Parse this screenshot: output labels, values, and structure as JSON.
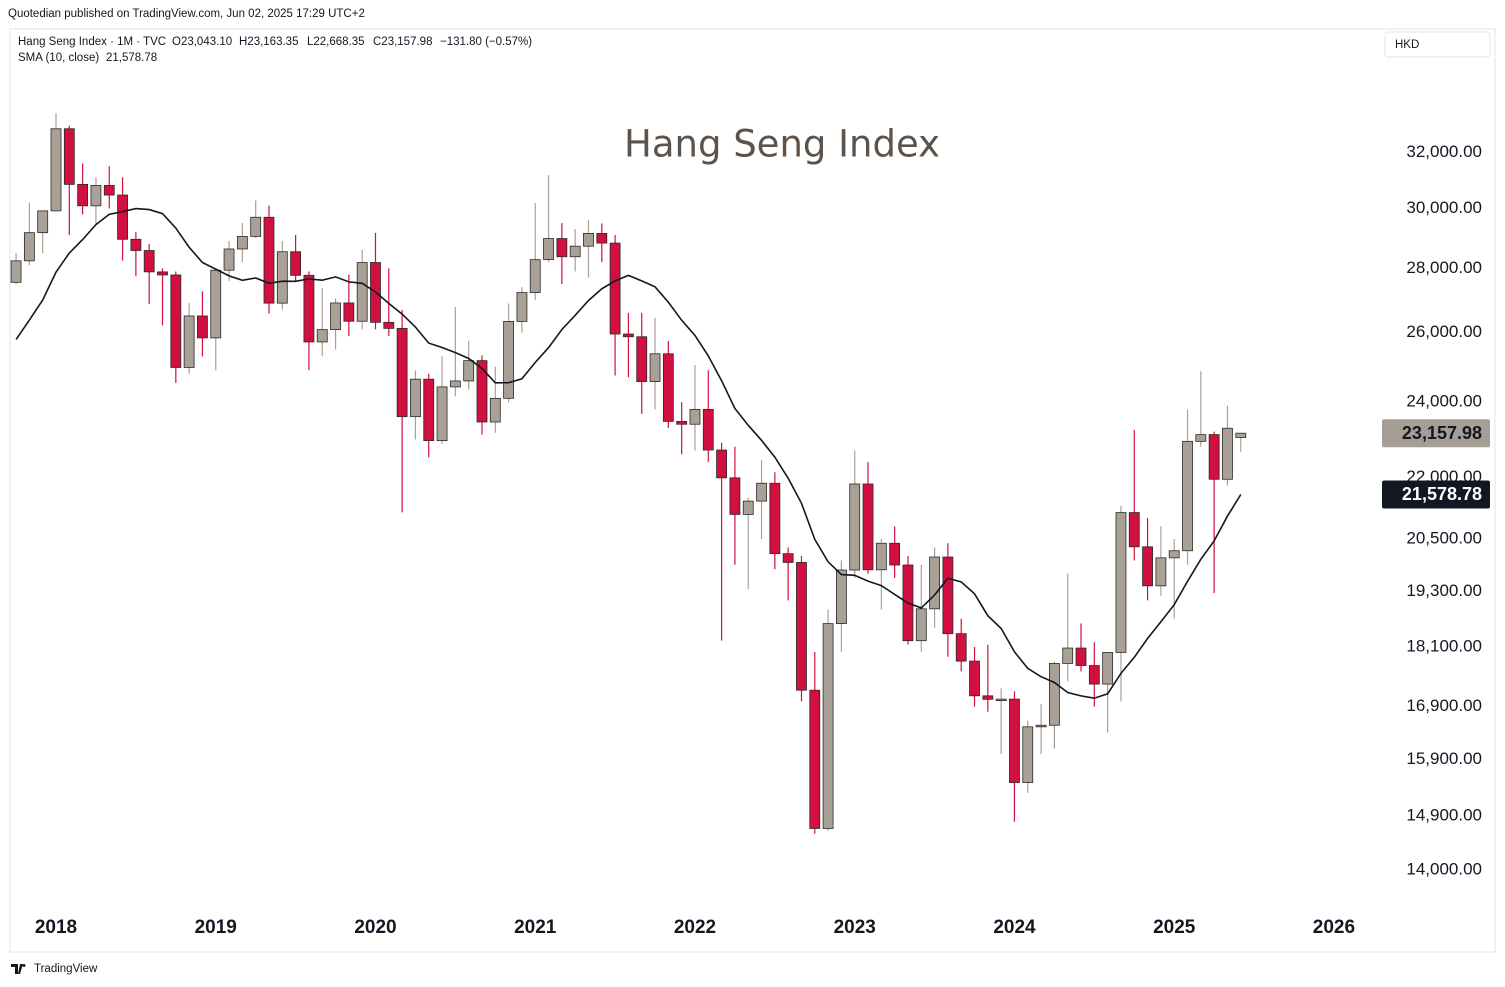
{
  "publisher": "Quotedian published on TradingView.com, Jun 02, 2025 17:29 UTC+2",
  "currency": "HKD",
  "footer": "TradingView",
  "header": {
    "symbol": "Hang Seng Index · 1M · TVC",
    "open": "O23,043.10",
    "high": "H23,163.35",
    "low": "L22,668.35",
    "close": "C23,157.98",
    "change": "−131.80 (−0.57%)"
  },
  "chart_data": {
    "type": "candlestick",
    "title": "Hang Seng Index",
    "log_scale": true,
    "grid": false,
    "up_color": "#a9a196",
    "down_color": "#d1103f",
    "xlim": [
      2017.712,
      2026.257
    ],
    "xticks": [
      2018,
      2019,
      2020,
      2021,
      2022,
      2023,
      2024,
      2025,
      2026
    ],
    "ylim": [
      13370,
      36850
    ],
    "yticks": [
      {
        "value": 14000,
        "label": "14,000.00"
      },
      {
        "value": 14900,
        "label": "14,900.00"
      },
      {
        "value": 15900,
        "label": "15,900.00"
      },
      {
        "value": 16900,
        "label": "16,900.00"
      },
      {
        "value": 18100,
        "label": "18,100.00"
      },
      {
        "value": 19300,
        "label": "19,300.00"
      },
      {
        "value": 20500,
        "label": "20,500.00"
      },
      {
        "value": 22000,
        "label": "22,000.00"
      },
      {
        "value": 24000,
        "label": "24,000.00"
      },
      {
        "value": 26000,
        "label": "26,000.00"
      },
      {
        "value": 28000,
        "label": "28,000.00"
      },
      {
        "value": 30000,
        "label": "30,000.00"
      },
      {
        "value": 32000,
        "label": "32,000.00"
      }
    ],
    "x": [
      2017.75,
      2017.8333,
      2017.9167,
      2018,
      2018.0833,
      2018.1667,
      2018.25,
      2018.3333,
      2018.4167,
      2018.5,
      2018.5833,
      2018.6667,
      2018.75,
      2018.8333,
      2018.9167,
      2019,
      2019.0833,
      2019.1667,
      2019.25,
      2019.3333,
      2019.4167,
      2019.5,
      2019.5833,
      2019.6667,
      2019.75,
      2019.8333,
      2019.9167,
      2020,
      2020.0833,
      2020.1667,
      2020.25,
      2020.3333,
      2020.4167,
      2020.5,
      2020.5833,
      2020.6667,
      2020.75,
      2020.8333,
      2020.9167,
      2021,
      2021.0833,
      2021.1667,
      2021.25,
      2021.3333,
      2021.4167,
      2021.5,
      2021.5833,
      2021.6667,
      2021.75,
      2021.8333,
      2021.9167,
      2022,
      2022.0833,
      2022.1667,
      2022.25,
      2022.3333,
      2022.4167,
      2022.5,
      2022.5833,
      2022.6667,
      2022.75,
      2022.8333,
      2022.9167,
      2023,
      2023.0833,
      2023.1667,
      2023.25,
      2023.3333,
      2023.4167,
      2023.5,
      2023.5833,
      2023.6667,
      2023.75,
      2023.8333,
      2023.9167,
      2024,
      2024.0833,
      2024.1667,
      2024.25,
      2024.3333,
      2024.4167,
      2024.5,
      2024.5833,
      2024.6667,
      2024.75,
      2024.8333,
      2024.9167,
      2025,
      2025.0833,
      2025.1667,
      2025.25,
      2025.3333,
      2025.4167
    ],
    "open": [
      27554,
      28245,
      29177,
      29919,
      32887,
      30845,
      30093,
      30808,
      30469,
      28955,
      28583,
      27888,
      27789,
      24980,
      26507,
      25846,
      27942,
      28633,
      29051,
      29699,
      26901,
      28543,
      27778,
      25725,
      26092,
      26907,
      26346,
      28190,
      26313,
      26130,
      23603,
      24644,
      22961,
      24427,
      24595,
      25177,
      23459,
      24107,
      26341,
      27231,
      28284,
      28980,
      28378,
      28725,
      29152,
      28828,
      25961,
      25879,
      24576,
      25377,
      23475,
      23398,
      23802,
      22713,
      21997,
      21089,
      21415,
      21860,
      20157,
      19954,
      17223,
      14687,
      18597,
      19781,
      21842,
      19786,
      20400,
      19895,
      18234,
      18916,
      20079,
      18382,
      17810,
      17112,
      17043,
      17047,
      15485,
      16511,
      16541,
      17763,
      18080,
      17719,
      17345,
      17989,
      21134,
      20317,
      19424,
      20060,
      20225,
      22941,
      23120,
      21961,
      23043.1
    ],
    "high": [
      28500,
      30199,
      29930,
      33484,
      33000,
      31600,
      31100,
      31500,
      31100,
      29200,
      28800,
      28000,
      27900,
      26900,
      27270,
      27990,
      28900,
      29500,
      30280,
      30100,
      28900,
      29100,
      27900,
      27380,
      27050,
      27800,
      28600,
      29170,
      28000,
      26690,
      24900,
      24800,
      25300,
      26780,
      25760,
      25330,
      25000,
      26890,
      27400,
      30190,
      31180,
      29500,
      29300,
      29600,
      29490,
      29100,
      26600,
      26600,
      26450,
      25750,
      24000,
      25050,
      24900,
      22900,
      22800,
      21500,
      22450,
      22140,
      20300,
      20100,
      18000,
      18900,
      20000,
      22700,
      22400,
      20500,
      20800,
      20100,
      19900,
      20300,
      20400,
      18700,
      18100,
      18150,
      17260,
      17200,
      16630,
      16950,
      17800,
      19700,
      18600,
      18200,
      18000,
      21300,
      23240,
      21000,
      20800,
      20500,
      23800,
      24870,
      23200,
      23900,
      23163.35
    ],
    "low": [
      27500,
      28100,
      28500,
      29900,
      29100,
      29800,
      29460,
      30000,
      28250,
      27750,
      26870,
      26220,
      24540,
      24800,
      25300,
      24900,
      27600,
      28200,
      29000,
      26580,
      26700,
      27600,
      24900,
      25300,
      25500,
      25900,
      26100,
      26100,
      25900,
      21140,
      22990,
      22520,
      22870,
      24160,
      24350,
      23120,
      23170,
      24000,
      26000,
      27000,
      28200,
      27500,
      27900,
      27700,
      28200,
      24750,
      24700,
      23680,
      23800,
      23300,
      22600,
      22700,
      22400,
      18235,
      19900,
      19350,
      20500,
      19800,
      19100,
      17000,
      14600,
      14650,
      18000,
      19600,
      19700,
      18900,
      19600,
      18150,
      18000,
      18500,
      17900,
      17600,
      16900,
      16800,
      16000,
      14800,
      15300,
      16000,
      16100,
      17400,
      17600,
      16900,
      16400,
      17000,
      20000,
      19100,
      19200,
      18700,
      19900,
      22800,
      19260,
      21800,
      22668.35
    ],
    "close": [
      28245,
      29177,
      29919,
      32887,
      30845,
      30093,
      30808,
      30469,
      28955,
      28583,
      27888,
      27789,
      24980,
      26507,
      25846,
      27942,
      28633,
      29051,
      29699,
      26901,
      28543,
      27778,
      25725,
      26092,
      26907,
      26346,
      28190,
      26313,
      26130,
      23603,
      24644,
      22961,
      24427,
      24595,
      25177,
      23459,
      24107,
      26341,
      27231,
      28284,
      28980,
      28378,
      28725,
      29152,
      28828,
      25961,
      25879,
      24576,
      25377,
      23475,
      23398,
      23802,
      22713,
      21997,
      21089,
      21415,
      21860,
      20157,
      19954,
      17223,
      14687,
      18597,
      19781,
      21842,
      19786,
      20400,
      19895,
      18234,
      18916,
      20079,
      18382,
      17810,
      17112,
      17043,
      17047,
      15485,
      16511,
      16541,
      17763,
      18080,
      17719,
      17345,
      17989,
      21134,
      20317,
      19424,
      20060,
      20225,
      22941,
      23120,
      21961,
      23290,
      23157.98
    ],
    "sma": {
      "name": "SMA (10, close)",
      "color": "#131722",
      "values": [
        25800,
        26382,
        27000,
        27877,
        28500,
        28943,
        29448,
        29797,
        29895,
        29998,
        29962,
        29824,
        29330,
        28692,
        28192,
        27977,
        27759,
        27617,
        27692,
        27524,
        27589,
        27588,
        27663,
        27621,
        27727,
        27568,
        27523,
        27249,
        26893,
        26563,
        26173,
        25691,
        25561,
        25412,
        25239,
        24950,
        24542,
        24544,
        24655,
        25123,
        25556,
        26098,
        26528,
        26983,
        27349,
        27599,
        27776,
        27599,
        27414,
        26933,
        26375,
        25917,
        25316,
        24601,
        23827,
        23372,
        22970,
        22528,
        21986,
        21361,
        20490,
        19969,
        19676,
        19661,
        19530,
        19429,
        19232,
        19040,
        18936,
        19222,
        19591,
        19513,
        19246,
        18766,
        18492,
        18000,
        17662,
        17493,
        17377,
        17177,
        17111,
        17065,
        17152,
        17561,
        17888,
        18282,
        18637,
        19006,
        19523,
        20027,
        20452,
        21046,
        21578.78
      ]
    },
    "price_labels": [
      {
        "value": 23157.98,
        "label": "23,157.98",
        "color": "#a69e94",
        "text_color": "#131722"
      },
      {
        "value": 21578.78,
        "label": "21,578.78",
        "color": "#131722",
        "text_color": "#ffffff"
      }
    ]
  }
}
